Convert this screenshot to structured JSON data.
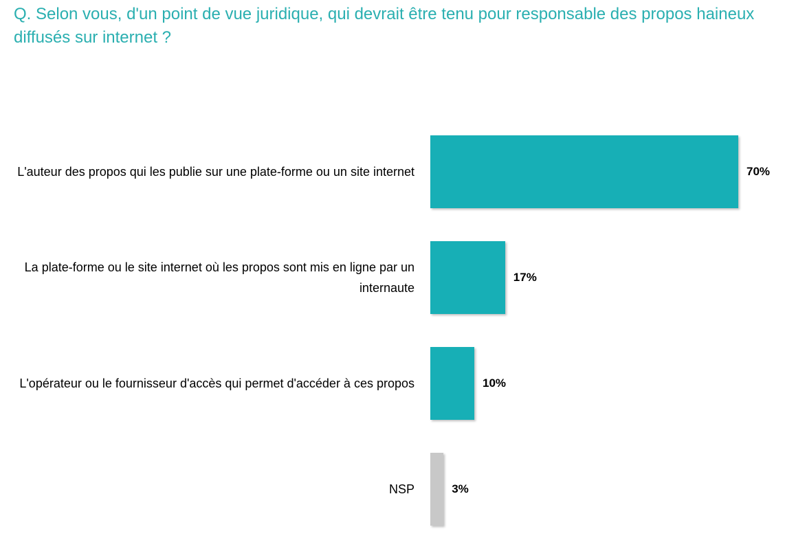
{
  "chart_data": {
    "type": "bar",
    "orientation": "horizontal",
    "title": "Q. Selon vous, d'un point de vue juridique, qui devrait être tenu pour responsable des propos haineux diffusés sur internet ?",
    "categories": [
      "L'auteur des propos qui les publie sur une plate-forme ou un site internet",
      "La plate-forme ou le site internet où les propos sont mis en ligne par un internaute",
      "L'opérateur ou le fournisseur d'accès qui permet d'accéder à ces propos",
      "NSP"
    ],
    "values": [
      70,
      17,
      10,
      3
    ],
    "value_labels": [
      "70%",
      "17%",
      "10%",
      "3%"
    ],
    "colors": [
      "#17afb6",
      "#17afb6",
      "#17afb6",
      "#c8c8c8"
    ]
  }
}
